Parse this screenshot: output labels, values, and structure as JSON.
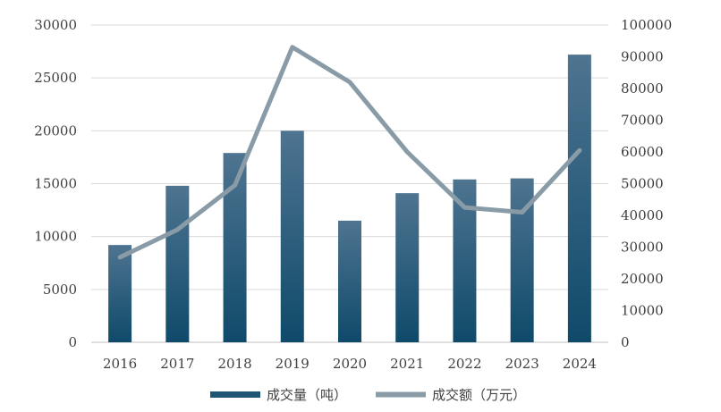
{
  "chart_data": {
    "type": "bar",
    "categories": [
      "2016",
      "2017",
      "2018",
      "2019",
      "2020",
      "2021",
      "2022",
      "2023",
      "2024"
    ],
    "series": [
      {
        "name": "成交量（吨）",
        "type": "bar",
        "axis": "left",
        "values": [
          9200,
          14800,
          17900,
          20000,
          11500,
          14100,
          15400,
          15500,
          27200
        ]
      },
      {
        "name": "成交额（万元）",
        "type": "line",
        "axis": "right",
        "values": [
          26800,
          35500,
          49500,
          93000,
          82000,
          60000,
          42500,
          41000,
          60500
        ]
      }
    ],
    "y_left": {
      "min": 0,
      "max": 30000,
      "ticks": [
        "0",
        "5000",
        "10000",
        "15000",
        "20000",
        "25000",
        "30000"
      ]
    },
    "y_right": {
      "min": 0,
      "max": 100000,
      "ticks": [
        "0",
        "10000",
        "20000",
        "30000",
        "40000",
        "50000",
        "60000",
        "70000",
        "80000",
        "90000",
        "100000"
      ]
    },
    "grid": true,
    "legend_position": "bottom",
    "colors": {
      "bar_top": "#4E7490",
      "bar_bottom": "#0F4A6A",
      "line": "#8A9BA8",
      "grid": "#D9D9D9",
      "axis": "#BFBFBF"
    }
  }
}
